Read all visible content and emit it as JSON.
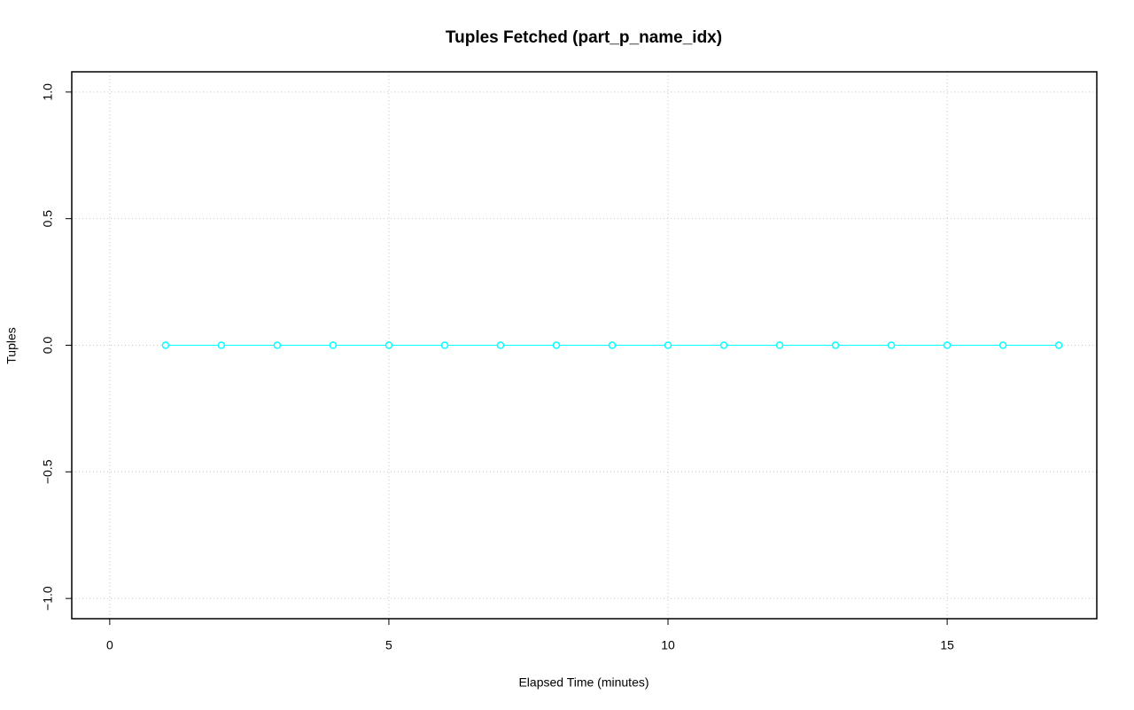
{
  "chart_data": {
    "type": "line",
    "title": "Tuples Fetched (part_p_name_idx)",
    "x_label": "Elapsed Time (minutes)",
    "y_label": "Tuples",
    "x": [
      1,
      2,
      3,
      4,
      5,
      6,
      7,
      8,
      9,
      10,
      11,
      12,
      13,
      14,
      15,
      16,
      17
    ],
    "values": [
      0,
      0,
      0,
      0,
      0,
      0,
      0,
      0,
      0,
      0,
      0,
      0,
      0,
      0,
      0,
      0,
      0
    ],
    "color": "#00ffff",
    "xlim": [
      -0.68,
      17.68
    ],
    "xticks": [
      0,
      5,
      10,
      15
    ],
    "ylim": [
      -1.08,
      1.08
    ],
    "yticks": [
      {
        "value": -1,
        "label": "−1.0"
      },
      {
        "value": -0.5,
        "label": "−0.5"
      },
      {
        "value": 0,
        "label": "0.0"
      },
      {
        "value": 0.5,
        "label": "0.5"
      },
      {
        "value": 1,
        "label": "1.0"
      }
    ],
    "grid": true
  }
}
